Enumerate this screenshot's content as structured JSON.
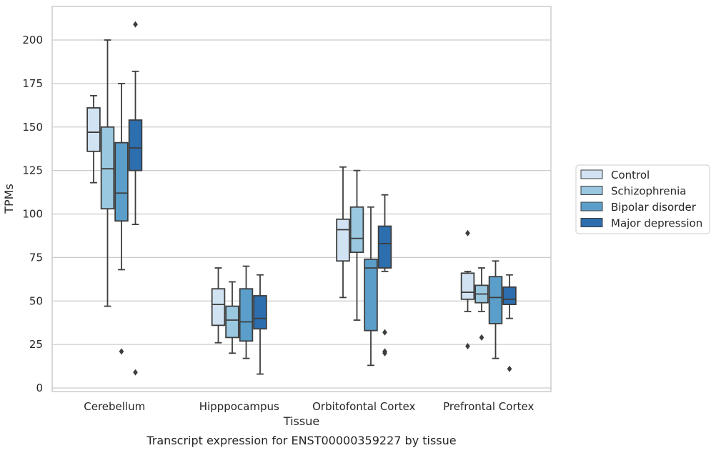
{
  "chart_data": {
    "type": "box",
    "title": "",
    "caption": "Transcript expression for ENST00000359227 by tissue",
    "xlabel": "Tissue",
    "ylabel": "TPMs",
    "ylim": [
      -2,
      220
    ],
    "yticks": [
      0,
      25,
      50,
      75,
      100,
      125,
      150,
      175,
      200
    ],
    "grid": "horizontal",
    "legend_position": "right",
    "categories": [
      "Cerebellum",
      "Hipppocampus",
      "Orbitofontal Cortex",
      "Prefrontal Cortex"
    ],
    "series": [
      {
        "name": "Control",
        "color": "#d1e2f2",
        "boxes": [
          {
            "whisker_low": 118,
            "q1": 136,
            "median": 147,
            "q3": 161,
            "whisker_high": 168,
            "outliers": []
          },
          {
            "whisker_low": 26,
            "q1": 36,
            "median": 48,
            "q3": 57,
            "whisker_high": 69,
            "outliers": []
          },
          {
            "whisker_low": 52,
            "q1": 73,
            "median": 91,
            "q3": 97,
            "whisker_high": 127,
            "outliers": []
          },
          {
            "whisker_low": 44,
            "q1": 51,
            "median": 55,
            "q3": 66,
            "whisker_high": 67,
            "outliers": [
              24,
              89
            ]
          }
        ]
      },
      {
        "name": "Schizophrenia",
        "color": "#9ac8e0",
        "boxes": [
          {
            "whisker_low": 47,
            "q1": 103,
            "median": 126,
            "q3": 150,
            "whisker_high": 200,
            "outliers": []
          },
          {
            "whisker_low": 20,
            "q1": 29,
            "median": 39,
            "q3": 47,
            "whisker_high": 61,
            "outliers": []
          },
          {
            "whisker_low": 39,
            "q1": 78,
            "median": 86,
            "q3": 104,
            "whisker_high": 125,
            "outliers": []
          },
          {
            "whisker_low": 44,
            "q1": 49,
            "median": 54,
            "q3": 59,
            "whisker_high": 69,
            "outliers": [
              29
            ]
          }
        ]
      },
      {
        "name": "Bipolar disorder",
        "color": "#5a9ec9",
        "boxes": [
          {
            "whisker_low": 68,
            "q1": 96,
            "median": 112,
            "q3": 141,
            "whisker_high": 175,
            "outliers": [
              21
            ]
          },
          {
            "whisker_low": 17,
            "q1": 27,
            "median": 38,
            "q3": 57,
            "whisker_high": 70,
            "outliers": []
          },
          {
            "whisker_low": 13,
            "q1": 33,
            "median": 69,
            "q3": 74,
            "whisker_high": 104,
            "outliers": []
          },
          {
            "whisker_low": 17,
            "q1": 37,
            "median": 52,
            "q3": 64,
            "whisker_high": 73,
            "outliers": []
          }
        ]
      },
      {
        "name": "Major depression",
        "color": "#2d6eae",
        "boxes": [
          {
            "whisker_low": 94,
            "q1": 125,
            "median": 138,
            "q3": 154,
            "whisker_high": 182,
            "outliers": [
              9,
              209
            ]
          },
          {
            "whisker_low": 8,
            "q1": 34,
            "median": 40,
            "q3": 53,
            "whisker_high": 65,
            "outliers": []
          },
          {
            "whisker_low": 67,
            "q1": 69,
            "median": 83,
            "q3": 93,
            "whisker_high": 111,
            "outliers": [
              20,
              21,
              32
            ]
          },
          {
            "whisker_low": 40,
            "q1": 48,
            "median": 51,
            "q3": 58,
            "whisker_high": 65,
            "outliers": [
              11
            ]
          }
        ]
      }
    ]
  }
}
